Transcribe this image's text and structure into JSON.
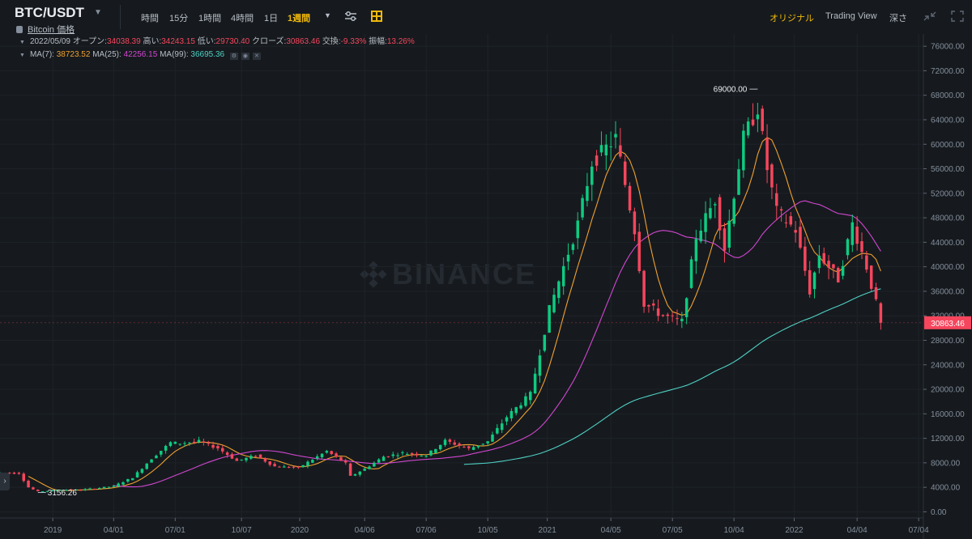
{
  "header": {
    "pair": "BTC/USDT",
    "subtitle": "Bitcoin 価格",
    "intervals": [
      {
        "label": "時間",
        "active": false
      },
      {
        "label": "15分",
        "active": false
      },
      {
        "label": "1時間",
        "active": false
      },
      {
        "label": "4時間",
        "active": false
      },
      {
        "label": "1日",
        "active": false
      },
      {
        "label": "1週間",
        "active": true
      }
    ],
    "views": [
      {
        "label": "オリジナル",
        "active": true
      },
      {
        "label": "Trading View",
        "active": false
      },
      {
        "label": "深さ",
        "active": false
      }
    ]
  },
  "legend": {
    "date": "2022/05/09",
    "open_label": "オープン:",
    "open": "34038.39",
    "high_label": "高い:",
    "high": "34243.15",
    "low_label": "低い:",
    "low": "29730.40",
    "close_label": "クローズ:",
    "close": "30863.46",
    "change_label": "交換:",
    "change": "-9.33%",
    "amp_label": "振幅:",
    "amp": "13.26%",
    "ma7_label": "MA(7):",
    "ma7": "38723.52",
    "ma25_label": "MA(25):",
    "ma25": "42256.15",
    "ma99_label": "MA(99):",
    "ma99": "36695.36"
  },
  "watermark": "BINANCE",
  "colors": {
    "up": "#0ecb81",
    "down": "#f6465d",
    "ma7": "#f0a030",
    "ma25": "#d146d1",
    "ma99": "#4fd1c5",
    "grid": "#1e2329",
    "axis_text": "#848e9c",
    "accent": "#f0b90b"
  },
  "chart_data": {
    "type": "candlestick",
    "ylim": [
      -1000,
      78000
    ],
    "yticks": [
      0,
      4000,
      8000,
      12000,
      16000,
      20000,
      24000,
      28000,
      32000,
      36000,
      40000,
      44000,
      48000,
      52000,
      56000,
      60000,
      64000,
      68000,
      72000,
      76000
    ],
    "xticks": [
      {
        "label": "2019",
        "x": "2019-01-01"
      },
      {
        "label": "04/01",
        "x": "2019-04-01"
      },
      {
        "label": "07/01",
        "x": "2019-07-01"
      },
      {
        "label": "10/07",
        "x": "2019-10-07"
      },
      {
        "label": "2020",
        "x": "2020-01-01"
      },
      {
        "label": "04/06",
        "x": "2020-04-06"
      },
      {
        "label": "07/06",
        "x": "2020-07-06"
      },
      {
        "label": "10/05",
        "x": "2020-10-05"
      },
      {
        "label": "2021",
        "x": "2021-01-01"
      },
      {
        "label": "04/05",
        "x": "2021-04-05"
      },
      {
        "label": "07/05",
        "x": "2021-07-05"
      },
      {
        "label": "10/04",
        "x": "2021-10-04"
      },
      {
        "label": "2022",
        "x": "2022-01-01"
      },
      {
        "label": "04/04",
        "x": "2022-04-04"
      },
      {
        "label": "07/04",
        "x": "2022-07-04"
      }
    ],
    "price_keypoints": [
      [
        "2018-10-15",
        6400
      ],
      [
        "2018-11-12",
        6300
      ],
      [
        "2018-11-26",
        4000
      ],
      [
        "2018-12-10",
        3300
      ],
      [
        "2019-01-14",
        3600
      ],
      [
        "2019-02-11",
        3600
      ],
      [
        "2019-03-11",
        3900
      ],
      [
        "2019-04-01",
        4200
      ],
      [
        "2019-04-29",
        5600
      ],
      [
        "2019-05-27",
        8700
      ],
      [
        "2019-06-24",
        11300
      ],
      [
        "2019-07-08",
        11200
      ],
      [
        "2019-08-05",
        11500
      ],
      [
        "2019-09-02",
        10400
      ],
      [
        "2019-09-30",
        8300
      ],
      [
        "2019-10-28",
        9200
      ],
      [
        "2019-11-25",
        7400
      ],
      [
        "2019-12-30",
        7200
      ],
      [
        "2020-02-10",
        9900
      ],
      [
        "2020-03-09",
        7900
      ],
      [
        "2020-03-16",
        5800
      ],
      [
        "2020-04-06",
        7000
      ],
      [
        "2020-05-04",
        9000
      ],
      [
        "2020-06-01",
        9600
      ],
      [
        "2020-07-06",
        9200
      ],
      [
        "2020-08-03",
        11600
      ],
      [
        "2020-09-07",
        10300
      ],
      [
        "2020-10-05",
        11500
      ],
      [
        "2020-11-02",
        15500
      ],
      [
        "2020-12-07",
        19200
      ],
      [
        "2021-01-04",
        33000
      ],
      [
        "2021-02-15",
        47000
      ],
      [
        "2021-03-08",
        57000
      ],
      [
        "2021-04-12",
        61000
      ],
      [
        "2021-05-10",
        46000
      ],
      [
        "2021-05-24",
        34000
      ],
      [
        "2021-06-21",
        32000
      ],
      [
        "2021-07-19",
        31000
      ],
      [
        "2021-08-09",
        45000
      ],
      [
        "2021-09-06",
        51000
      ],
      [
        "2021-09-20",
        43000
      ],
      [
        "2021-10-18",
        61000
      ],
      [
        "2021-11-08",
        66000
      ],
      [
        "2021-11-22",
        56000
      ],
      [
        "2021-12-06",
        49000
      ],
      [
        "2022-01-03",
        46000
      ],
      [
        "2022-01-24",
        36000
      ],
      [
        "2022-02-07",
        42000
      ],
      [
        "2022-03-07",
        38000
      ],
      [
        "2022-03-28",
        47000
      ],
      [
        "2022-04-18",
        40000
      ],
      [
        "2022-05-02",
        34000
      ],
      [
        "2022-05-09",
        30863
      ]
    ],
    "last_candle": {
      "date": "2022-05-09",
      "open": 34038.39,
      "high": 34243.15,
      "low": 29730.4,
      "close": 30863.46
    },
    "annotations": [
      {
        "label": "69000.00",
        "date": "2021-11-08",
        "value": 69000
      },
      {
        "label": "3156.26",
        "date": "2018-12-10",
        "value": 3156.26
      }
    ],
    "last_price_label": "30863.46",
    "series": [
      {
        "name": "MA(7)",
        "color": "#f0a030"
      },
      {
        "name": "MA(25)",
        "color": "#d146d1"
      },
      {
        "name": "MA(99)",
        "color": "#4fd1c5"
      }
    ]
  }
}
